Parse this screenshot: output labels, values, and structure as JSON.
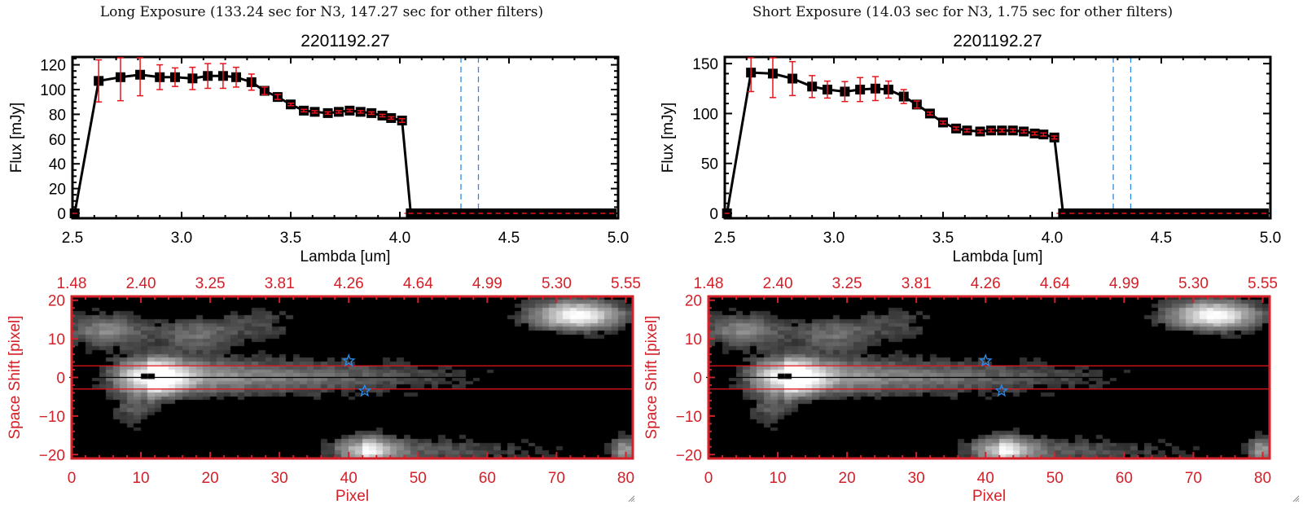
{
  "panels": [
    {
      "id": "long",
      "header": "Long Exposure (133.24 sec for N3, 147.27 sec for other filters)",
      "chart_data": [
        {
          "type": "line",
          "title": "2201192.27",
          "xlabel": "Lambda [um]",
          "ylabel": "Flux [mJy]",
          "xlim": [
            2.5,
            5.0
          ],
          "ylim": [
            0,
            125
          ],
          "xticks": [
            2.5,
            3.0,
            3.5,
            4.0,
            4.5,
            5.0
          ],
          "xtick_labels": [
            "2.5",
            "3.0",
            "3.5",
            "4.0",
            "4.5",
            "5.0"
          ],
          "yticks": [
            0,
            20,
            40,
            60,
            80,
            100,
            120
          ],
          "ytick_labels": [
            "0",
            "20",
            "40",
            "60",
            "80",
            "100",
            "120"
          ],
          "series": [
            {
              "name": "flux",
              "color": "#000000",
              "error_color": "#e8141c",
              "x": [
                2.51,
                2.62,
                2.72,
                2.81,
                2.9,
                2.97,
                3.05,
                3.12,
                3.19,
                3.25,
                3.32,
                3.38,
                3.44,
                3.5,
                3.56,
                3.61,
                3.67,
                3.72,
                3.77,
                3.82,
                3.87,
                3.92,
                3.96,
                4.01,
                4.05,
                4.09,
                4.13,
                4.17,
                4.21,
                4.25,
                4.29,
                4.33,
                4.37,
                4.41,
                4.45,
                4.49,
                4.53,
                4.57,
                4.61,
                4.65,
                4.69,
                4.73,
                4.77,
                4.81,
                4.85,
                4.89,
                4.93,
                4.97
              ],
              "y": [
                0,
                107,
                110,
                112,
                110,
                110,
                109,
                111,
                111,
                110,
                106,
                99,
                94,
                88,
                83,
                82,
                81,
                82,
                83,
                82,
                81,
                79,
                77,
                75,
                0,
                0,
                0,
                0,
                0,
                0,
                0,
                0,
                0,
                0,
                0,
                0,
                0,
                0,
                0,
                0,
                0,
                0,
                0,
                0,
                0,
                0,
                0,
                0
              ],
              "yerr": [
                0,
                17,
                19,
                17,
                10,
                7.5,
                9,
                10,
                10,
                8,
                6.5,
                3,
                2,
                1,
                1,
                1,
                1,
                1,
                1,
                1,
                1,
                1,
                1,
                1.5,
                0,
                0,
                0,
                0,
                0,
                0,
                0,
                0,
                0,
                0,
                0,
                0,
                0,
                0,
                0,
                0,
                0,
                0,
                0,
                0,
                0,
                0,
                0,
                0
              ]
            }
          ],
          "reference_lines": {
            "vertical_x": [
              4.28,
              4.36
            ],
            "vertical_color": "#2a8ae8",
            "horizontal_y": 0,
            "horizontal_color": "#e8141c"
          }
        },
        {
          "type": "heatmap",
          "xlabel": "Pixel",
          "ylabel": "Space Shift [pixel]",
          "axis_color": "#d42028",
          "xlim": [
            0,
            81
          ],
          "ylim": [
            -21,
            21
          ],
          "xticks": [
            0,
            10,
            20,
            30,
            40,
            50,
            60,
            70,
            80
          ],
          "xtick_labels": [
            "0",
            "10",
            "20",
            "30",
            "40",
            "50",
            "60",
            "70",
            "80"
          ],
          "yticks": [
            -20,
            -10,
            0,
            10,
            20
          ],
          "ytick_labels": [
            "−20",
            "−10",
            "0",
            "10",
            "20"
          ],
          "top_tick_labels": [
            "1.48",
            "2.40",
            "3.25",
            "3.81",
            "4.26",
            "4.64",
            "4.99",
            "5.30",
            "5.55"
          ],
          "aperture_lines_y": [
            3,
            -3
          ],
          "center_line_y": 0,
          "markers": [
            {
              "name": "star",
              "x": 40,
              "y": 4.3,
              "color": "#2a8ae8"
            },
            {
              "name": "star",
              "x": 42.3,
              "y": -3.5,
              "color": "#2a8ae8"
            }
          ],
          "masked_pixels": [
            {
              "x": 10,
              "y": 0
            },
            {
              "x": 11,
              "y": 0
            }
          ],
          "sources": [
            {
              "x": 11,
              "y": 0,
              "amp": 1.0,
              "sx": 3.5,
              "sy": 3.2,
              "tail_to_x": 68,
              "tail_amp": 0.62
            },
            {
              "x": 73,
              "y": 16,
              "amp": 1.0,
              "sx": 4.5,
              "sy": 2.6
            },
            {
              "x": 5,
              "y": 12,
              "amp": 0.45,
              "sx": 4,
              "sy": 3
            },
            {
              "x": 18,
              "y": 11,
              "amp": 0.35,
              "sx": 4,
              "sy": 3
            },
            {
              "x": 27,
              "y": 14,
              "amp": 0.2,
              "sx": 4,
              "sy": 3
            },
            {
              "x": 42,
              "y": -19,
              "amp": 0.7,
              "sx": 3,
              "sy": 2.5,
              "tail_to_x": 80,
              "tail_amp": 0.35
            },
            {
              "x": 80,
              "y": -19,
              "amp": 0.55,
              "sx": 1.5,
              "sy": 2.5
            },
            {
              "x": 9,
              "y": -9,
              "amp": 0.25,
              "sx": 2,
              "sy": 3
            }
          ]
        }
      ]
    },
    {
      "id": "short",
      "header": "Short Exposure (14.03 sec for N3, 1.75 sec for other filters)",
      "chart_data": [
        {
          "type": "line",
          "title": "2201192.27",
          "xlabel": "Lambda [um]",
          "ylabel": "Flux [mJy]",
          "xlim": [
            2.5,
            5.0
          ],
          "ylim": [
            0,
            155
          ],
          "xticks": [
            2.5,
            3.0,
            3.5,
            4.0,
            4.5,
            5.0
          ],
          "xtick_labels": [
            "2.5",
            "3.0",
            "3.5",
            "4.0",
            "4.5",
            "5.0"
          ],
          "yticks": [
            0,
            50,
            100,
            150
          ],
          "ytick_labels": [
            "0",
            "50",
            "100",
            "150"
          ],
          "series": [
            {
              "name": "flux",
              "color": "#000000",
              "error_color": "#e8141c",
              "x": [
                2.51,
                2.62,
                2.72,
                2.81,
                2.9,
                2.97,
                3.05,
                3.12,
                3.19,
                3.25,
                3.32,
                3.38,
                3.44,
                3.5,
                3.56,
                3.61,
                3.67,
                3.72,
                3.77,
                3.82,
                3.87,
                3.92,
                3.96,
                4.01,
                4.05,
                4.09,
                4.13,
                4.17,
                4.21,
                4.25,
                4.29,
                4.33,
                4.37,
                4.41,
                4.45,
                4.49,
                4.53,
                4.57,
                4.61,
                4.65,
                4.69,
                4.73,
                4.77,
                4.81,
                4.85,
                4.89,
                4.93,
                4.97
              ],
              "y": [
                0,
                141,
                140,
                135,
                127,
                124,
                122,
                124,
                125,
                124,
                117,
                109,
                100,
                91,
                85,
                83,
                82,
                83,
                83,
                83,
                82,
                80,
                79,
                76,
                0,
                0,
                0,
                0,
                0,
                0,
                0,
                0,
                0,
                0,
                0,
                0,
                0,
                0,
                0,
                0,
                0,
                0,
                0,
                0,
                0,
                0,
                0,
                0
              ],
              "yerr": [
                0,
                19,
                24,
                17,
                11,
                8.5,
                10,
                12,
                12,
                8.5,
                7,
                3.5,
                1.5,
                1.5,
                1.5,
                1.5,
                1.5,
                1.5,
                1.5,
                1.5,
                1.5,
                1.5,
                1.5,
                1.5,
                0,
                0,
                0,
                0,
                0,
                0,
                0,
                0,
                0,
                0,
                0,
                0,
                0,
                0,
                0,
                0,
                0,
                0,
                0,
                0,
                0,
                0,
                0,
                0
              ]
            }
          ],
          "reference_lines": {
            "vertical_x": [
              4.28,
              4.36
            ],
            "vertical_color": "#2a8ae8",
            "horizontal_y": 0,
            "horizontal_color": "#e8141c"
          }
        },
        {
          "type": "heatmap",
          "xlabel": "Pixel",
          "ylabel": "Space Shift [pixel]",
          "axis_color": "#d42028",
          "xlim": [
            0,
            81
          ],
          "ylim": [
            -21,
            21
          ],
          "xticks": [
            0,
            10,
            20,
            30,
            40,
            50,
            60,
            70,
            80
          ],
          "xtick_labels": [
            "0",
            "10",
            "20",
            "30",
            "40",
            "50",
            "60",
            "70",
            "80"
          ],
          "yticks": [
            -20,
            -10,
            0,
            10,
            20
          ],
          "ytick_labels": [
            "−20",
            "−10",
            "0",
            "10",
            "20"
          ],
          "top_tick_labels": [
            "1.48",
            "2.40",
            "3.25",
            "3.81",
            "4.26",
            "4.64",
            "4.99",
            "5.30",
            "5.55"
          ],
          "aperture_lines_y": [
            3,
            -3
          ],
          "center_line_y": 0,
          "markers": [
            {
              "name": "star",
              "x": 40,
              "y": 4.3,
              "color": "#2a8ae8"
            },
            {
              "name": "star",
              "x": 42.3,
              "y": -3.5,
              "color": "#2a8ae8"
            }
          ],
          "masked_pixels": [
            {
              "x": 10,
              "y": 0
            },
            {
              "x": 11,
              "y": 0
            }
          ],
          "sources": [
            {
              "x": 11,
              "y": 0,
              "amp": 1.0,
              "sx": 3.5,
              "sy": 3.2,
              "tail_to_x": 68,
              "tail_amp": 0.62
            },
            {
              "x": 73,
              "y": 16,
              "amp": 1.0,
              "sx": 4.5,
              "sy": 2.6
            },
            {
              "x": 5,
              "y": 12,
              "amp": 0.45,
              "sx": 4,
              "sy": 3
            },
            {
              "x": 18,
              "y": 11,
              "amp": 0.35,
              "sx": 4,
              "sy": 3
            },
            {
              "x": 27,
              "y": 14,
              "amp": 0.2,
              "sx": 4,
              "sy": 3
            },
            {
              "x": 42,
              "y": -19,
              "amp": 0.7,
              "sx": 3,
              "sy": 2.5,
              "tail_to_x": 80,
              "tail_amp": 0.35
            },
            {
              "x": 80,
              "y": -19,
              "amp": 0.55,
              "sx": 1.5,
              "sy": 2.5
            },
            {
              "x": 9,
              "y": -9,
              "amp": 0.25,
              "sx": 2,
              "sy": 3
            }
          ]
        }
      ]
    }
  ]
}
